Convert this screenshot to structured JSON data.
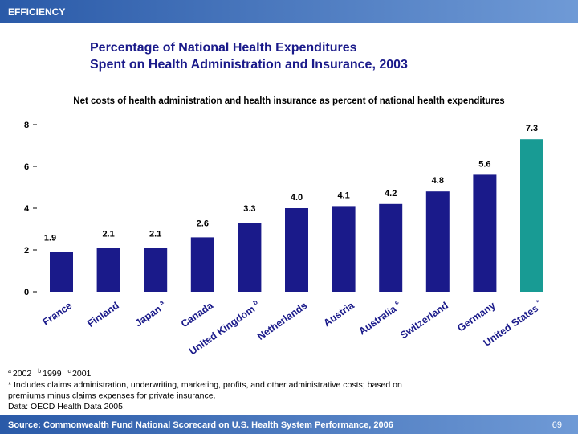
{
  "header": {
    "banner": "EFFICIENCY"
  },
  "chart_data": {
    "type": "bar",
    "title": "Percentage of National Health Expenditures",
    "title_line2": "Spent on Health Administration and Insurance, 2003",
    "subtitle": "Net costs of health administration and health insurance as percent of national health expenditures",
    "categories": [
      "France",
      "Finland",
      "Japan",
      "Canada",
      "United Kingdom",
      "Netherlands",
      "Austria",
      "Australia",
      "Switzerland",
      "Germany",
      "United States"
    ],
    "category_notes": [
      null,
      null,
      "a",
      null,
      "b",
      null,
      null,
      "c",
      null,
      null,
      "*"
    ],
    "values": [
      1.9,
      2.1,
      2.1,
      2.6,
      3.3,
      4.0,
      4.1,
      4.2,
      4.8,
      5.6,
      7.3
    ],
    "value_labels": [
      "1.9",
      "2.1",
      "2.1",
      "2.6",
      "3.3",
      "4.0",
      "4.1",
      "4.2",
      "4.8",
      "5.6",
      "7.3"
    ],
    "colors": [
      "#1a1a8a",
      "#1a1a8a",
      "#1a1a8a",
      "#1a1a8a",
      "#1a1a8a",
      "#1a1a8a",
      "#1a1a8a",
      "#1a1a8a",
      "#1a1a8a",
      "#1a1a8a",
      "#189b94"
    ],
    "ylim": [
      0,
      8
    ],
    "yticks": [
      0,
      2,
      4,
      6,
      8
    ],
    "grid": false
  },
  "notes": {
    "footnotes": [
      {
        "mark": "a",
        "text": "2002"
      },
      {
        "mark": "b",
        "text": "1999"
      },
      {
        "mark": "c",
        "text": "2001"
      }
    ],
    "lines": [
      "* Includes claims administration, underwriting, marketing, profits, and other administrative costs; based on",
      "premiums minus claims expenses for private insurance.",
      "Data: OECD Health Data 2005."
    ]
  },
  "footer": {
    "source": "Source: Commonwealth Fund National Scorecard on U.S. Health System Performance, 2006",
    "page": "69"
  }
}
